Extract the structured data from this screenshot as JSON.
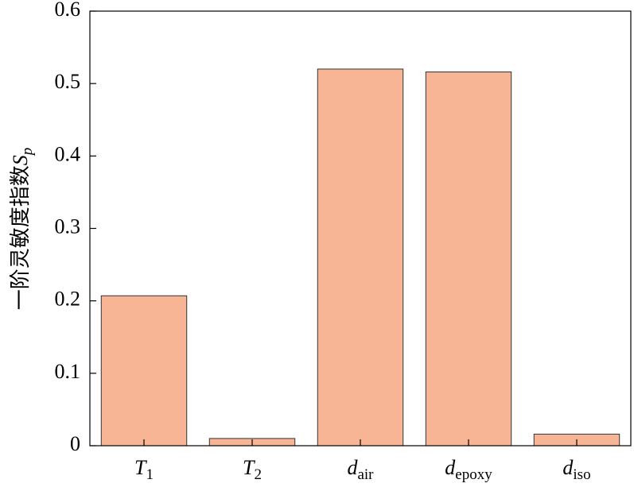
{
  "chart_data": {
    "type": "bar",
    "y_label": "一阶灵敏度指数Sp",
    "categories": [
      "T1",
      "T2",
      "dair",
      "depoxy",
      "diso"
    ],
    "values": [
      0.207,
      0.01,
      0.52,
      0.516,
      0.016
    ],
    "color": "#f8b595",
    "ylim": [
      0,
      0.6
    ],
    "yticks": [
      0,
      0.1,
      0.2,
      0.3,
      0.4,
      0.5,
      0.6
    ],
    "grid": false
  }
}
